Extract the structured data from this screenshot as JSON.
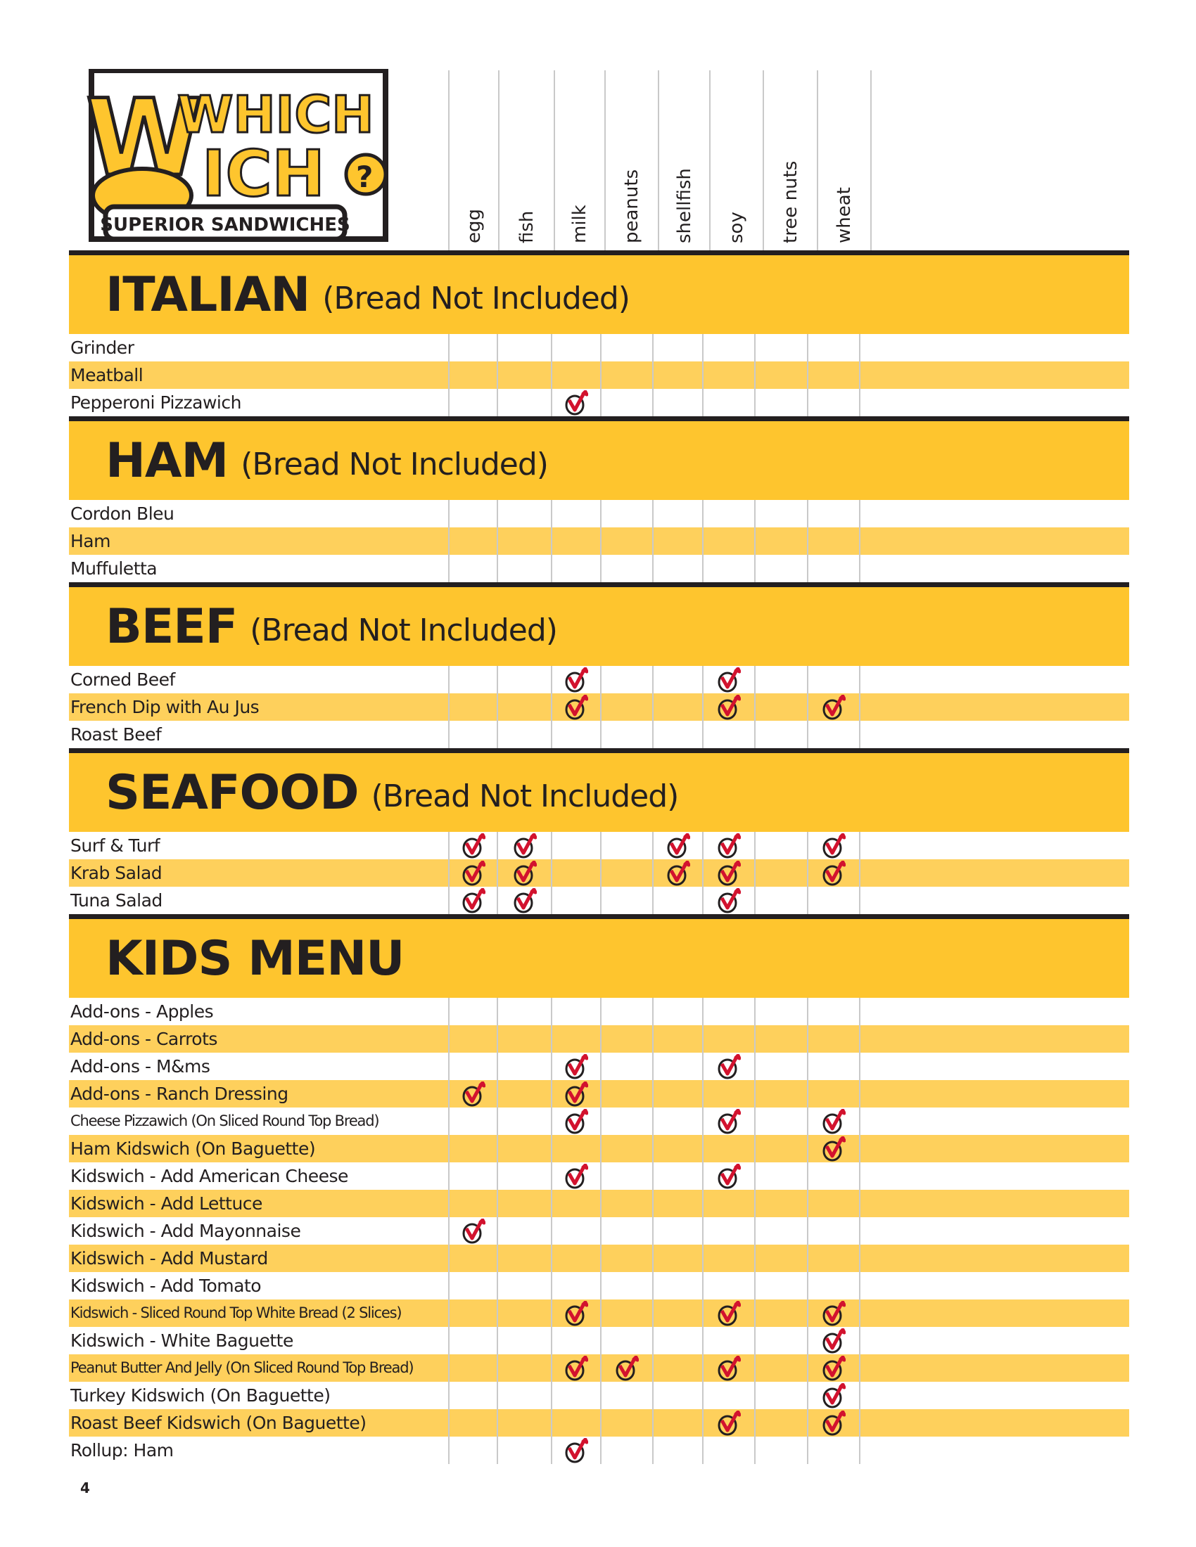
{
  "logo": {
    "line1": "WHICH",
    "line2": "WICH",
    "tagline": "SUPERIOR SANDWICHES"
  },
  "columns": [
    "egg",
    "fish",
    "milk",
    "peanuts",
    "shellfish",
    "soy",
    "tree nuts",
    "wheat"
  ],
  "colors": {
    "band": "#fec52e",
    "alt_row": "#fed05c",
    "check": "#d2122e",
    "rule": "#231f20"
  },
  "check_icon": "circled-checkmark-icon",
  "sections": [
    {
      "title": "ITALIAN",
      "subtitle": "(Bread Not Included)",
      "items": [
        {
          "name": "Grinder",
          "allergens": []
        },
        {
          "name": "Meatball",
          "allergens": []
        },
        {
          "name": "Pepperoni Pizzawich",
          "allergens": [
            "milk"
          ]
        }
      ]
    },
    {
      "title": "HAM",
      "subtitle": "(Bread Not Included)",
      "items": [
        {
          "name": "Cordon Bleu",
          "allergens": []
        },
        {
          "name": "Ham",
          "allergens": []
        },
        {
          "name": "Muffuletta",
          "allergens": []
        }
      ]
    },
    {
      "title": "BEEF",
      "subtitle": "(Bread Not Included)",
      "items": [
        {
          "name": "Corned Beef",
          "allergens": [
            "milk",
            "soy"
          ]
        },
        {
          "name": "French Dip with Au Jus",
          "allergens": [
            "milk",
            "soy",
            "wheat"
          ]
        },
        {
          "name": "Roast Beef",
          "allergens": []
        }
      ]
    },
    {
      "title": "SEAFOOD",
      "subtitle": "(Bread Not Included)",
      "items": [
        {
          "name": "Surf & Turf",
          "allergens": [
            "egg",
            "fish",
            "shellfish",
            "soy",
            "wheat"
          ]
        },
        {
          "name": "Krab Salad",
          "allergens": [
            "egg",
            "fish",
            "shellfish",
            "soy",
            "wheat"
          ]
        },
        {
          "name": "Tuna Salad",
          "allergens": [
            "egg",
            "fish",
            "soy"
          ]
        }
      ]
    },
    {
      "title": "KIDS MENU",
      "subtitle": "",
      "items": [
        {
          "name": "Add-ons - Apples",
          "allergens": []
        },
        {
          "name": "Add-ons - Carrots",
          "allergens": []
        },
        {
          "name": "Add-ons - M&ms",
          "allergens": [
            "milk",
            "soy"
          ]
        },
        {
          "name": "Add-ons - Ranch Dressing",
          "allergens": [
            "egg",
            "milk"
          ]
        },
        {
          "name": "Cheese Pizzawich (On Sliced Round Top Bread)",
          "allergens": [
            "milk",
            "soy",
            "wheat"
          ]
        },
        {
          "name": "Ham Kidswich (On Baguette)",
          "allergens": [
            "wheat"
          ]
        },
        {
          "name": "Kidswich - Add American Cheese",
          "allergens": [
            "milk",
            "soy"
          ]
        },
        {
          "name": "Kidswich - Add Lettuce",
          "allergens": []
        },
        {
          "name": "Kidswich - Add Mayonnaise",
          "allergens": [
            "egg"
          ]
        },
        {
          "name": "Kidswich - Add Mustard",
          "allergens": []
        },
        {
          "name": "Kidswich - Add Tomato",
          "allergens": []
        },
        {
          "name": "Kidswich - Sliced Round Top White Bread (2 Slices)",
          "allergens": [
            "milk",
            "soy",
            "wheat"
          ]
        },
        {
          "name": "Kidswich - White Baguette",
          "allergens": [
            "wheat"
          ]
        },
        {
          "name": "Peanut Butter And Jelly (On Sliced Round Top Bread)",
          "allergens": [
            "milk",
            "peanuts",
            "soy",
            "wheat"
          ]
        },
        {
          "name": "Turkey Kidswich (On Baguette)",
          "allergens": [
            "wheat"
          ]
        },
        {
          "name": "Roast Beef Kidswich (On Baguette)",
          "allergens": [
            "soy",
            "wheat"
          ]
        },
        {
          "name": "Rollup: Ham",
          "allergens": [
            "milk"
          ]
        }
      ]
    }
  ],
  "page_number": "4"
}
